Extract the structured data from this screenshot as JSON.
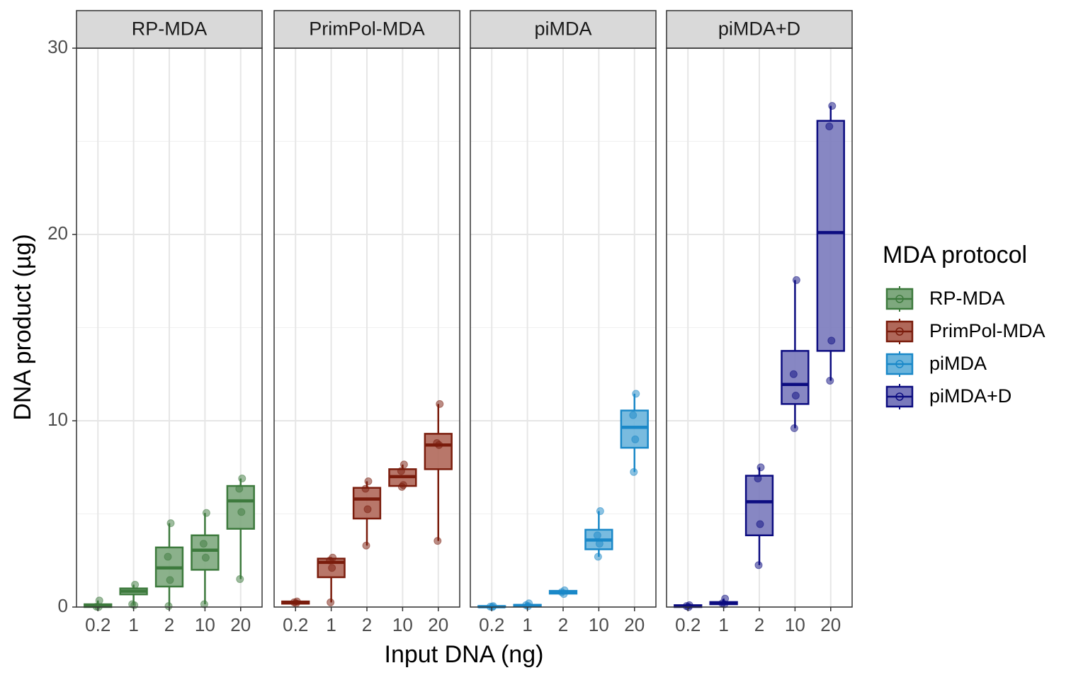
{
  "chart_data": {
    "type": "box",
    "xlabel": "Input DNA (ng)",
    "ylabel": "DNA product (µg)",
    "legend_title": "MDA protocol",
    "legend_position": "right",
    "grid": true,
    "categories": [
      "0.2",
      "1",
      "2",
      "10",
      "20"
    ],
    "ylim": [
      0,
      30
    ],
    "yticks": [
      0,
      10,
      20,
      30
    ],
    "minor_yticks": [
      5,
      15,
      25
    ],
    "facets": [
      {
        "title": "RP-MDA",
        "color": "#3d7a3d",
        "fill": "#7ea87e",
        "boxes": [
          {
            "min": 0,
            "q1": 0,
            "median": 0.1,
            "q3": 0.15,
            "max": 0.35,
            "points": [
              0.35,
              0.02,
              0
            ]
          },
          {
            "min": 0.1,
            "q1": 0.68,
            "median": 0.85,
            "q3": 1.0,
            "max": 1.2,
            "points": [
              1.2,
              0.15,
              0.1
            ]
          },
          {
            "min": 0.05,
            "q1": 1.1,
            "median": 2.1,
            "q3": 3.2,
            "max": 4.5,
            "points": [
              4.5,
              2.7,
              1.45,
              0.05
            ]
          },
          {
            "min": 0.15,
            "q1": 2.0,
            "median": 3.05,
            "q3": 3.85,
            "max": 5.05,
            "points": [
              5.05,
              3.4,
              2.65,
              0.15
            ]
          },
          {
            "min": 1.5,
            "q1": 4.2,
            "median": 5.7,
            "q3": 6.5,
            "max": 6.9,
            "points": [
              6.9,
              6.35,
              5.1,
              1.5
            ]
          }
        ]
      },
      {
        "title": "PrimPol-MDA",
        "color": "#7a1c0c",
        "fill": "#b0685a",
        "boxes": [
          {
            "min": 0.15,
            "q1": 0.18,
            "median": 0.25,
            "q3": 0.3,
            "max": 0.3,
            "points": [
              0.3,
              0.25,
              0.2
            ]
          },
          {
            "min": 0.25,
            "q1": 1.6,
            "median": 2.4,
            "q3": 2.6,
            "max": 2.65,
            "points": [
              2.65,
              2.5,
              2.1,
              0.25
            ]
          },
          {
            "min": 3.3,
            "q1": 4.75,
            "median": 5.8,
            "q3": 6.4,
            "max": 6.75,
            "points": [
              6.75,
              6.35,
              5.25,
              3.3
            ]
          },
          {
            "min": 6.45,
            "q1": 6.5,
            "median": 7.0,
            "q3": 7.4,
            "max": 7.65,
            "points": [
              7.65,
              7.3,
              6.55,
              6.45
            ]
          },
          {
            "min": 3.55,
            "q1": 7.4,
            "median": 8.7,
            "q3": 9.3,
            "max": 10.9,
            "points": [
              10.9,
              8.8,
              8.7,
              3.55
            ]
          }
        ]
      },
      {
        "title": "piMDA",
        "color": "#1a88c8",
        "fill": "#6ab4dc",
        "boxes": [
          {
            "min": 0,
            "q1": 0,
            "median": 0.02,
            "q3": 0.05,
            "max": 0.05,
            "points": [
              0.05,
              0.02,
              0
            ]
          },
          {
            "min": 0.02,
            "q1": 0.03,
            "median": 0.08,
            "q3": 0.12,
            "max": 0.2,
            "points": [
              0.2,
              0.1,
              0.05
            ]
          },
          {
            "min": 0.7,
            "q1": 0.72,
            "median": 0.8,
            "q3": 0.87,
            "max": 0.9,
            "points": [
              0.9,
              0.8,
              0.7
            ]
          },
          {
            "min": 2.7,
            "q1": 3.1,
            "median": 3.6,
            "q3": 4.15,
            "max": 5.15,
            "points": [
              5.15,
              3.85,
              3.4,
              2.7
            ]
          },
          {
            "min": 7.25,
            "q1": 8.55,
            "median": 9.65,
            "q3": 10.55,
            "max": 11.45,
            "points": [
              11.45,
              10.3,
              9.0,
              7.25
            ]
          }
        ]
      },
      {
        "title": "piMDA+D",
        "color": "#0c0c80",
        "fill": "#7a7abc",
        "boxes": [
          {
            "min": 0,
            "q1": 0,
            "median": 0.05,
            "q3": 0.1,
            "max": 0.1,
            "points": [
              0.1,
              0.05,
              0
            ]
          },
          {
            "min": 0.15,
            "q1": 0.15,
            "median": 0.2,
            "q3": 0.27,
            "max": 0.45,
            "points": [
              0.45,
              0.2,
              0.15
            ]
          },
          {
            "min": 2.25,
            "q1": 3.85,
            "median": 5.65,
            "q3": 7.05,
            "max": 7.5,
            "points": [
              7.5,
              6.9,
              4.45,
              2.25
            ]
          },
          {
            "min": 9.6,
            "q1": 10.9,
            "median": 11.95,
            "q3": 13.75,
            "max": 17.55,
            "points": [
              17.55,
              12.5,
              11.35,
              9.6
            ]
          },
          {
            "min": 12.15,
            "q1": 13.75,
            "median": 20.1,
            "q3": 26.1,
            "max": 26.9,
            "points": [
              26.9,
              25.8,
              14.3,
              12.15
            ]
          }
        ]
      }
    ]
  }
}
